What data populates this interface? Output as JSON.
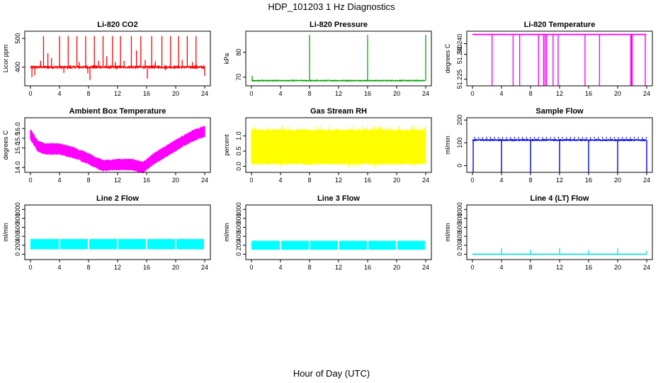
{
  "figure": {
    "title": "HDP_101203  1 Hz Diagnostics",
    "xlabel": "Hour of Day (UTC)"
  },
  "chart_data": [
    {
      "type": "line",
      "title": "Li-820 CO2",
      "ylabel": "Licor ppm",
      "color": "#ff0000",
      "xlim": [
        0,
        24
      ],
      "xticks": [
        0,
        4,
        8,
        12,
        16,
        20,
        24
      ],
      "ylim": [
        335,
        525
      ],
      "yticks": [
        400,
        500
      ],
      "series": [
        {
          "name": "CO2",
          "baseline": 400,
          "noise": 6,
          "spikes": [
            [
              0.2,
              365
            ],
            [
              0.6,
              372
            ],
            [
              1.4,
              422
            ],
            [
              1.8,
              508
            ],
            [
              2.4,
              448
            ],
            [
              2.9,
              432
            ],
            [
              4.0,
              508
            ],
            [
              4.6,
              380
            ],
            [
              5.2,
              508
            ],
            [
              6.4,
              508
            ],
            [
              6.7,
              418
            ],
            [
              7.6,
              508
            ],
            [
              7.9,
              378
            ],
            [
              8.2,
              355
            ],
            [
              8.8,
              508
            ],
            [
              9.4,
              422
            ],
            [
              10.0,
              508
            ],
            [
              10.5,
              438
            ],
            [
              11.3,
              508
            ],
            [
              11.7,
              418
            ],
            [
              12.4,
              508
            ],
            [
              12.9,
              422
            ],
            [
              13.9,
              508
            ],
            [
              14.6,
              458
            ],
            [
              15.2,
              508
            ],
            [
              15.8,
              425
            ],
            [
              16.1,
              360
            ],
            [
              16.7,
              508
            ],
            [
              17.2,
              420
            ],
            [
              18.1,
              508
            ],
            [
              18.6,
              390
            ],
            [
              19.3,
              508
            ],
            [
              20.4,
              508
            ],
            [
              20.9,
              425
            ],
            [
              21.6,
              508
            ],
            [
              22.3,
              418
            ],
            [
              22.8,
              508
            ],
            [
              24.0,
              370
            ]
          ]
        }
      ]
    },
    {
      "type": "line",
      "title": "Li-820 Pressure",
      "ylabel": "kPa",
      "color": "#00aa00",
      "xlim": [
        0,
        24
      ],
      "xticks": [
        0,
        4,
        8,
        12,
        16,
        20,
        24
      ],
      "ylim": [
        66.5,
        88.5
      ],
      "yticks": [
        70,
        80
      ],
      "series": [
        {
          "name": "Pressure",
          "baseline": 68.6,
          "noise": 0.25,
          "spikes": [
            [
              0.1,
              70.5
            ],
            [
              8.0,
              87
            ],
            [
              16.0,
              87
            ],
            [
              24.0,
              87
            ]
          ]
        }
      ]
    },
    {
      "type": "line",
      "title": "Li-820 Temperature",
      "ylabel": "degrees C",
      "color": "#ff00ff",
      "xlim": [
        0,
        24
      ],
      "xticks": [
        0,
        4,
        8,
        12,
        16,
        20,
        24
      ],
      "ylim": [
        51.221,
        51.254
      ],
      "yticks": [
        51.225,
        51.24
      ],
      "ytick_labels": [
        "51.225",
        "51.240"
      ],
      "extra_tick_label": "51.240",
      "series": [
        {
          "name": "Temperature",
          "baseline": 51.252,
          "noise": 0.0,
          "drops": [
            2.7,
            5.6,
            6.5,
            9.1,
            9.8,
            10.0,
            10.2,
            11.1,
            11.8,
            15.5,
            17.5,
            21.8,
            21.9,
            22.0,
            23.8
          ]
        }
      ]
    },
    {
      "type": "area",
      "title": "Ambient Box Temperature",
      "ylabel": "degrees C",
      "color": "#ff00ff",
      "xlim": [
        0,
        24
      ],
      "xticks": [
        0,
        4,
        8,
        12,
        16,
        20,
        24
      ],
      "ylim": [
        13.75,
        16.55
      ],
      "yticks": [
        14.0,
        15.0,
        16.0
      ],
      "ytick_labels": [
        "14.0",
        "15.0",
        "16.0"
      ],
      "extra_tick_label": "15.5",
      "series": [
        {
          "name": "Box Temp",
          "center": [
            [
              0,
              15.7
            ],
            [
              1,
              15.1
            ],
            [
              2,
              14.95
            ],
            [
              4,
              14.95
            ],
            [
              6,
              14.75
            ],
            [
              8,
              14.45
            ],
            [
              9,
              14.25
            ],
            [
              10,
              14.1
            ],
            [
              12,
              14.15
            ],
            [
              14,
              14.15
            ],
            [
              15.5,
              14.0
            ],
            [
              17,
              14.45
            ],
            [
              19,
              14.9
            ],
            [
              21,
              15.35
            ],
            [
              22.5,
              15.65
            ],
            [
              24,
              15.85
            ]
          ],
          "half_width": 0.3
        }
      ]
    },
    {
      "type": "area",
      "title": "Gas Stream RH",
      "ylabel": "percent",
      "color": "#ffff00",
      "xlim": [
        0,
        24
      ],
      "xticks": [
        0,
        4,
        8,
        12,
        16,
        20,
        24
      ],
      "ylim": [
        -0.2,
        1.6
      ],
      "yticks": [
        0.0,
        0.5,
        1.0
      ],
      "ytick_labels": [
        "0.0",
        "0.5",
        "1.0"
      ],
      "series": [
        {
          "name": "RH",
          "low": 0.05,
          "high": 1.1,
          "peak": 1.35
        }
      ]
    },
    {
      "type": "line",
      "title": "Sample Flow",
      "ylabel": "ml/min",
      "color": "#0000ee",
      "xlim": [
        0,
        24
      ],
      "xticks": [
        0,
        4,
        8,
        12,
        16,
        20,
        24
      ],
      "ylim": [
        -30,
        210
      ],
      "yticks": [
        0,
        100,
        200
      ],
      "series": [
        {
          "name": "Sample Flow",
          "baseline": 112,
          "noise": 4,
          "drops": [
            0.1,
            4.0,
            8.0,
            12.0,
            16.0,
            20.0,
            24.0
          ]
        }
      ]
    },
    {
      "type": "area",
      "title": "Line 2 Flow",
      "ylabel": "ml/min",
      "color": "#00ffff",
      "xlim": [
        0,
        24
      ],
      "xticks": [
        0,
        4,
        8,
        12,
        16,
        20,
        24
      ],
      "ylim": [
        -120,
        1100
      ],
      "yticks": [
        0,
        200,
        400,
        600,
        800,
        1000
      ],
      "series": [
        {
          "name": "Line 2",
          "low": 110,
          "high": 340,
          "gaps": [
            4.0,
            8.0,
            12.0,
            16.0,
            20.0
          ]
        }
      ]
    },
    {
      "type": "area",
      "title": "Line 3 Flow",
      "ylabel": "ml/min",
      "color": "#00ffff",
      "xlim": [
        0,
        24
      ],
      "xticks": [
        0,
        4,
        8,
        12,
        16,
        20,
        24
      ],
      "ylim": [
        -120,
        1100
      ],
      "yticks": [
        0,
        200,
        400,
        600,
        800,
        1000
      ],
      "series": [
        {
          "name": "Line 3",
          "low": 100,
          "high": 300,
          "gaps": [
            4.0,
            8.0,
            12.0,
            16.0,
            20.0
          ]
        }
      ]
    },
    {
      "type": "line",
      "title": "Line 4 (LT) Flow",
      "ylabel": "ml/min",
      "color": "#00e0e0",
      "xlim": [
        0,
        24
      ],
      "xticks": [
        0,
        4,
        8,
        12,
        16,
        20,
        24
      ],
      "ylim": [
        -120,
        1100
      ],
      "yticks": [
        0,
        200,
        400,
        600,
        800,
        1000
      ],
      "series": [
        {
          "name": "Line 4",
          "baseline": 0,
          "spikes": [
            [
              4.0,
              130
            ],
            [
              8.0,
              100
            ],
            [
              12.0,
              140
            ],
            [
              16.0,
              90
            ],
            [
              20.0,
              130
            ],
            [
              24.0,
              80
            ]
          ]
        }
      ]
    }
  ]
}
